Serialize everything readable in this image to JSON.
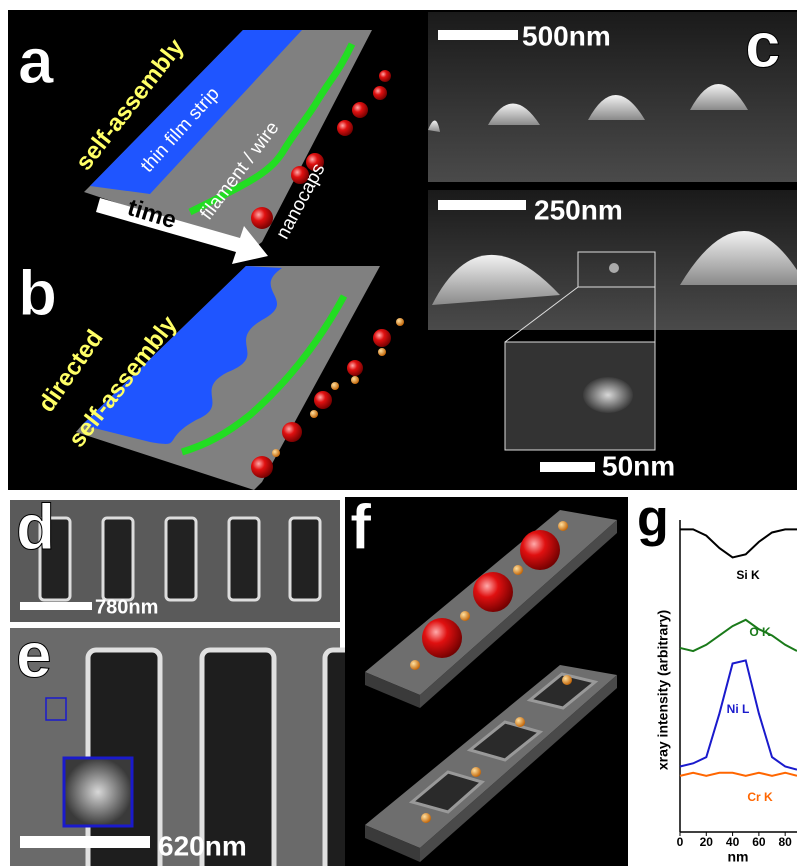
{
  "panels": {
    "a": {
      "label": "a",
      "caption": "self-assembly",
      "strip": "thin film strip",
      "wire": "filament / wire",
      "caps": "nanocaps",
      "arrow": "time"
    },
    "b": {
      "label": "b",
      "caption_1": "directed",
      "caption_2": "self-assembly"
    },
    "c": {
      "label": "c",
      "scale_1": "500nm",
      "scale_2": "250nm",
      "scale_3": "50nm"
    },
    "d": {
      "label": "d",
      "scale": "780nm"
    },
    "e": {
      "label": "e",
      "scale": "620nm"
    },
    "f": {
      "label": "f"
    }
  },
  "chart_data": {
    "type": "line",
    "title": "g",
    "xlabel": "nm",
    "ylabel": "xray intensity (arbitrary)",
    "x": [
      0,
      10,
      20,
      30,
      40,
      50,
      60,
      70,
      80,
      89
    ],
    "xlim": [
      0,
      89
    ],
    "xticks": [
      0,
      20,
      40,
      60,
      80
    ],
    "ylim": [
      0,
      100
    ],
    "series": [
      {
        "name": "Si K",
        "color": "#000000",
        "values": [
          97,
          97,
          95,
          91,
          88,
          89,
          93,
          96,
          97,
          97
        ]
      },
      {
        "name": "O K",
        "color": "#1a7a1a",
        "values": [
          59,
          58,
          60,
          63,
          66,
          68,
          65,
          63,
          60,
          58
        ]
      },
      {
        "name": "Ni L",
        "color": "#1a1acc",
        "values": [
          21,
          22,
          24,
          38,
          54,
          55,
          38,
          24,
          21,
          20
        ]
      },
      {
        "name": "Cr K",
        "color": "#ff6600",
        "values": [
          18,
          19,
          18,
          19,
          19,
          18,
          19,
          18,
          19,
          18
        ]
      }
    ]
  }
}
